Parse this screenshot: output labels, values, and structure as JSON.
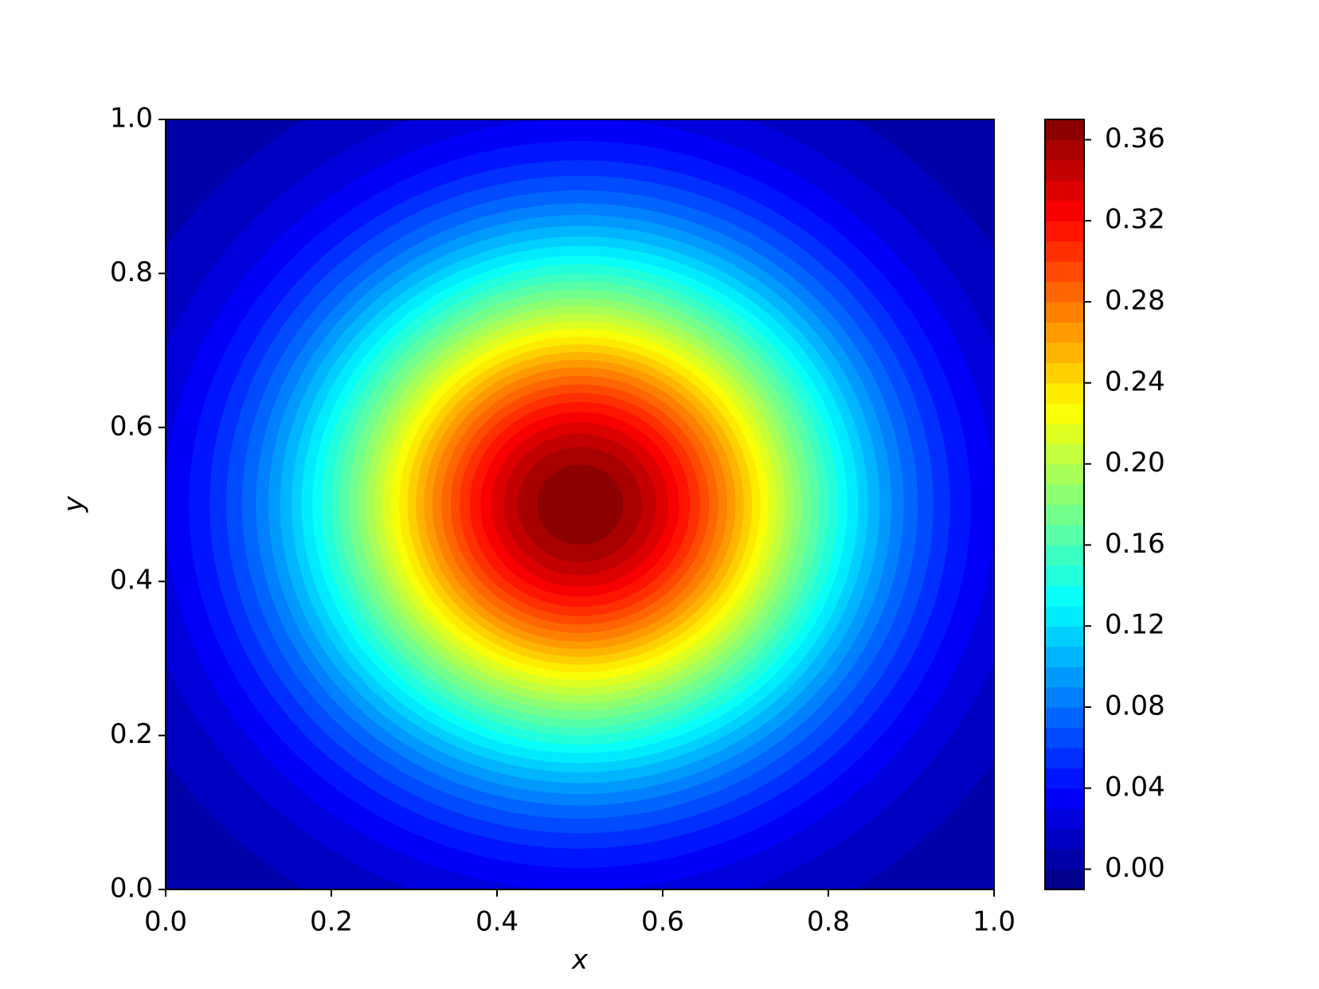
{
  "chart_data": {
    "type": "contourf",
    "colormap": "jet",
    "xlabel": "x",
    "ylabel": "y",
    "xlim": [
      0,
      1
    ],
    "ylim": [
      0,
      1
    ],
    "xticks": [
      {
        "value": 0,
        "label": "0.0"
      },
      {
        "value": 0.2,
        "label": "0.2"
      },
      {
        "value": 0.4,
        "label": "0.4"
      },
      {
        "value": 0.6,
        "label": "0.6"
      },
      {
        "value": 0.8,
        "label": "0.8"
      },
      {
        "value": 1,
        "label": "1.0"
      }
    ],
    "yticks": [
      {
        "value": 0,
        "label": "0.0"
      },
      {
        "value": 0.2,
        "label": "0.2"
      },
      {
        "value": 0.4,
        "label": "0.4"
      },
      {
        "value": 0.6,
        "label": "0.6"
      },
      {
        "value": 0.8,
        "label": "0.8"
      },
      {
        "value": 1,
        "label": "1.0"
      }
    ],
    "center": {
      "x": 0.5,
      "y": 0.5
    },
    "levels": [
      -0.01,
      0.0,
      0.01,
      0.02,
      0.03,
      0.04,
      0.05,
      0.06,
      0.07,
      0.08,
      0.09,
      0.1,
      0.11,
      0.12,
      0.13,
      0.14,
      0.15,
      0.16,
      0.17,
      0.18,
      0.19,
      0.2,
      0.21,
      0.22,
      0.23,
      0.24,
      0.25,
      0.26,
      0.27,
      0.28,
      0.29,
      0.3,
      0.31,
      0.32,
      0.33,
      0.34,
      0.35,
      0.36,
      0.37
    ],
    "radii": [
      null,
      null,
      0.601,
      0.54,
      0.501,
      0.472,
      0.447,
      0.427,
      0.408,
      0.391,
      0.376,
      0.362,
      0.348,
      0.336,
      0.323,
      0.312,
      0.3,
      0.29,
      0.279,
      0.268,
      0.258,
      0.248,
      0.238,
      0.228,
      0.218,
      0.208,
      0.198,
      0.188,
      0.178,
      0.167,
      0.156,
      0.145,
      0.133,
      0.12,
      0.107,
      0.092,
      0.075,
      0.052
    ],
    "colorbar_ticks": [
      {
        "value": 0,
        "label": "0.00"
      },
      {
        "value": 0.04,
        "label": "0.04"
      },
      {
        "value": 0.08,
        "label": "0.08"
      },
      {
        "value": 0.12,
        "label": "0.12"
      },
      {
        "value": 0.16,
        "label": "0.16"
      },
      {
        "value": 0.2,
        "label": "0.20"
      },
      {
        "value": 0.24,
        "label": "0.24"
      },
      {
        "value": 0.28,
        "label": "0.28"
      },
      {
        "value": 0.32,
        "label": "0.32"
      },
      {
        "value": 0.36,
        "label": "0.36"
      }
    ]
  }
}
